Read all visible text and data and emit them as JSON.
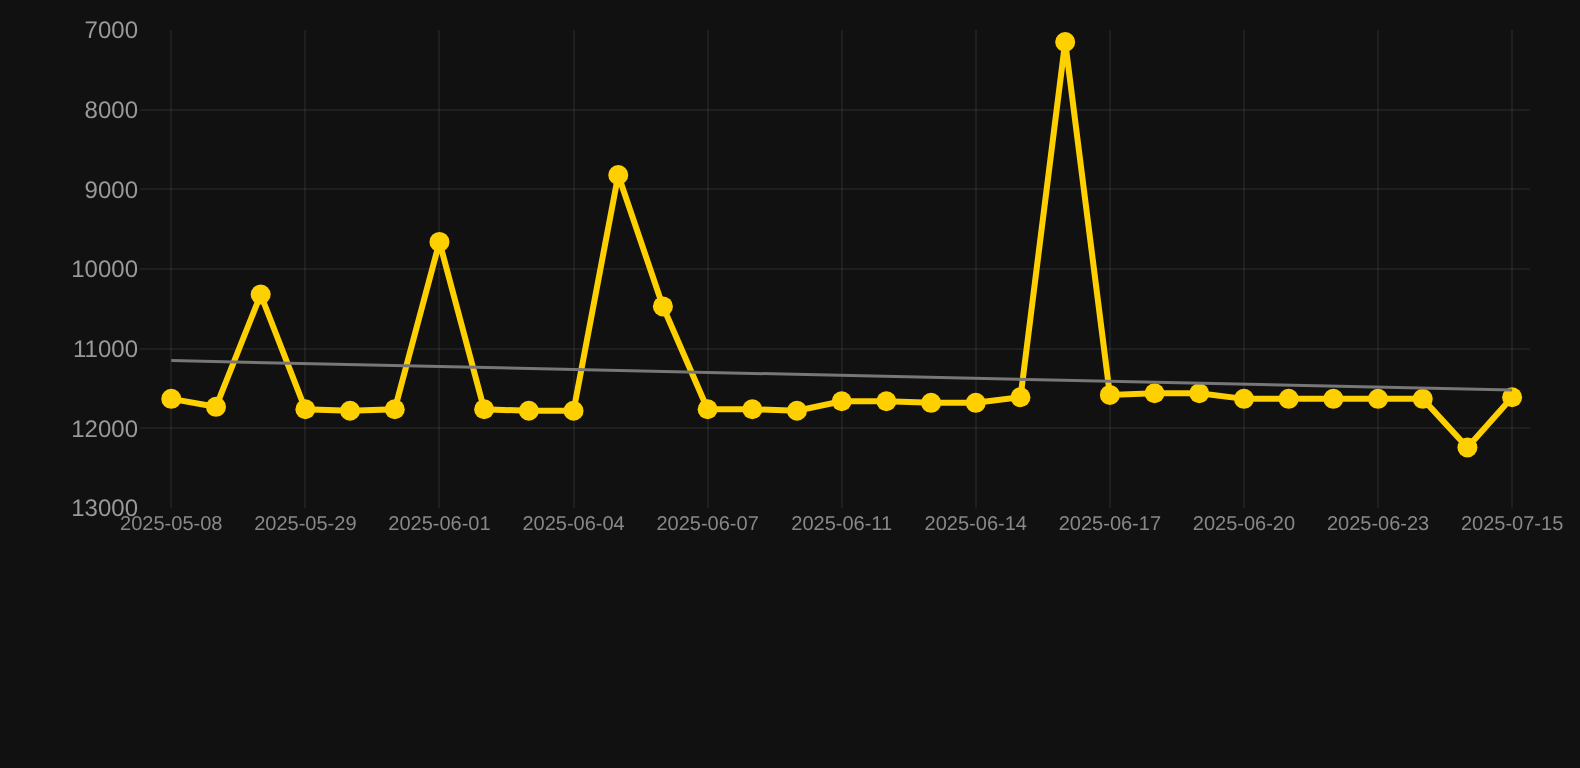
{
  "chart_data": {
    "type": "line",
    "categories": [
      "2025-05-08",
      null,
      null,
      "2025-05-29",
      null,
      null,
      "2025-06-01",
      null,
      null,
      "2025-06-04",
      null,
      null,
      "2025-06-07",
      null,
      null,
      "2025-06-11",
      null,
      null,
      "2025-06-14",
      null,
      null,
      "2025-06-17",
      null,
      null,
      "2025-06-20",
      null,
      null,
      "2025-06-23",
      null,
      null,
      "2025-07-15"
    ],
    "series": [
      {
        "color": "#ffd000",
        "marker": "circle",
        "values": [
          11630,
          11730,
          10320,
          11760,
          11780,
          11760,
          9660,
          11760,
          11780,
          11780,
          8820,
          10470,
          11760,
          11760,
          11780,
          11660,
          11660,
          11680,
          11680,
          11610,
          7150,
          11580,
          11560,
          11560,
          11630,
          11630,
          11630,
          11630,
          11630,
          12240,
          11610
        ]
      },
      {
        "type": "line",
        "color": "#777777",
        "marker": "none",
        "values": [
          11150,
          null,
          null,
          null,
          null,
          null,
          null,
          null,
          null,
          null,
          null,
          null,
          null,
          null,
          null,
          null,
          null,
          null,
          null,
          null,
          null,
          null,
          null,
          null,
          null,
          null,
          null,
          null,
          null,
          null,
          11520
        ]
      }
    ],
    "ylim": [
      13000,
      7000
    ],
    "yticks": [
      7000,
      8000,
      9000,
      10000,
      11000,
      12000,
      13000
    ],
    "grid": true
  }
}
